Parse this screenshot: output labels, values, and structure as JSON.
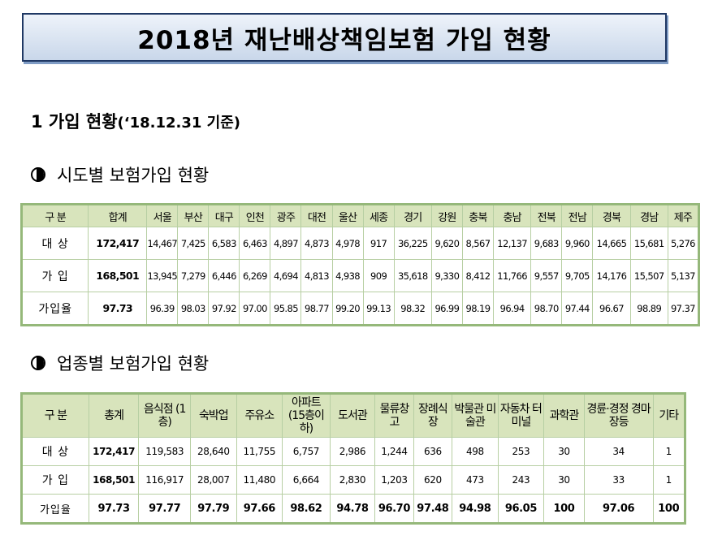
{
  "title": "2018년 재난배상책임보험 가입 현황",
  "section_heading": "1  가입 현황",
  "section_date": "(‘18.12.31 기준)",
  "regional": {
    "subtitle": "시도별 보험가입 현황",
    "headers": [
      "구 분",
      "합계",
      "서울",
      "부산",
      "대구",
      "인천",
      "광주",
      "대전",
      "울산",
      "세종",
      "경기",
      "강원",
      "충북",
      "충남",
      "전북",
      "전남",
      "경북",
      "경남",
      "제주"
    ],
    "rows": [
      [
        "대 상",
        "172,417",
        "14,467",
        "7,425",
        "6,583",
        "6,463",
        "4,897",
        "4,873",
        "4,978",
        "917",
        "36,225",
        "9,620",
        "8,567",
        "12,137",
        "9,683",
        "9,960",
        "14,665",
        "15,681",
        "5,276"
      ],
      [
        "가 입",
        "168,501",
        "13,945",
        "7,279",
        "6,446",
        "6,269",
        "4,694",
        "4,813",
        "4,938",
        "909",
        "35,618",
        "9,330",
        "8,412",
        "11,766",
        "9,557",
        "9,705",
        "14,176",
        "15,507",
        "5,137"
      ],
      [
        "가입율",
        "97.73",
        "96.39",
        "98.03",
        "97.92",
        "97.00",
        "95.85",
        "98.77",
        "99.20",
        "99.13",
        "98.32",
        "96.99",
        "98.19",
        "96.94",
        "98.70",
        "97.44",
        "96.67",
        "98.89",
        "97.37"
      ]
    ]
  },
  "industry": {
    "subtitle": "업종별 보험가입 현황",
    "headers": [
      "구 분",
      "총계",
      "음식점 (1층)",
      "숙박업",
      "주유소",
      "아파트 (15층이하)",
      "도서관",
      "물류창고",
      "장례식장",
      "박물관 미술관",
      "자동차 터미널",
      "과학관",
      "경륜·경정 경마장등",
      "기타"
    ],
    "rows": [
      [
        "대 상",
        "172,417",
        "119,583",
        "28,640",
        "11,755",
        "6,757",
        "2,986",
        "1,244",
        "636",
        "498",
        "253",
        "30",
        "34",
        "1"
      ],
      [
        "가 입",
        "168,501",
        "116,917",
        "28,007",
        "11,480",
        "6,664",
        "2,830",
        "1,203",
        "620",
        "473",
        "243",
        "30",
        "33",
        "1"
      ],
      [
        "가입율",
        "97.73",
        "97.77",
        "97.79",
        "97.66",
        "98.62",
        "94.78",
        "96.70",
        "97.48",
        "94.98",
        "96.05",
        "100",
        "97.06",
        "100"
      ]
    ]
  }
}
